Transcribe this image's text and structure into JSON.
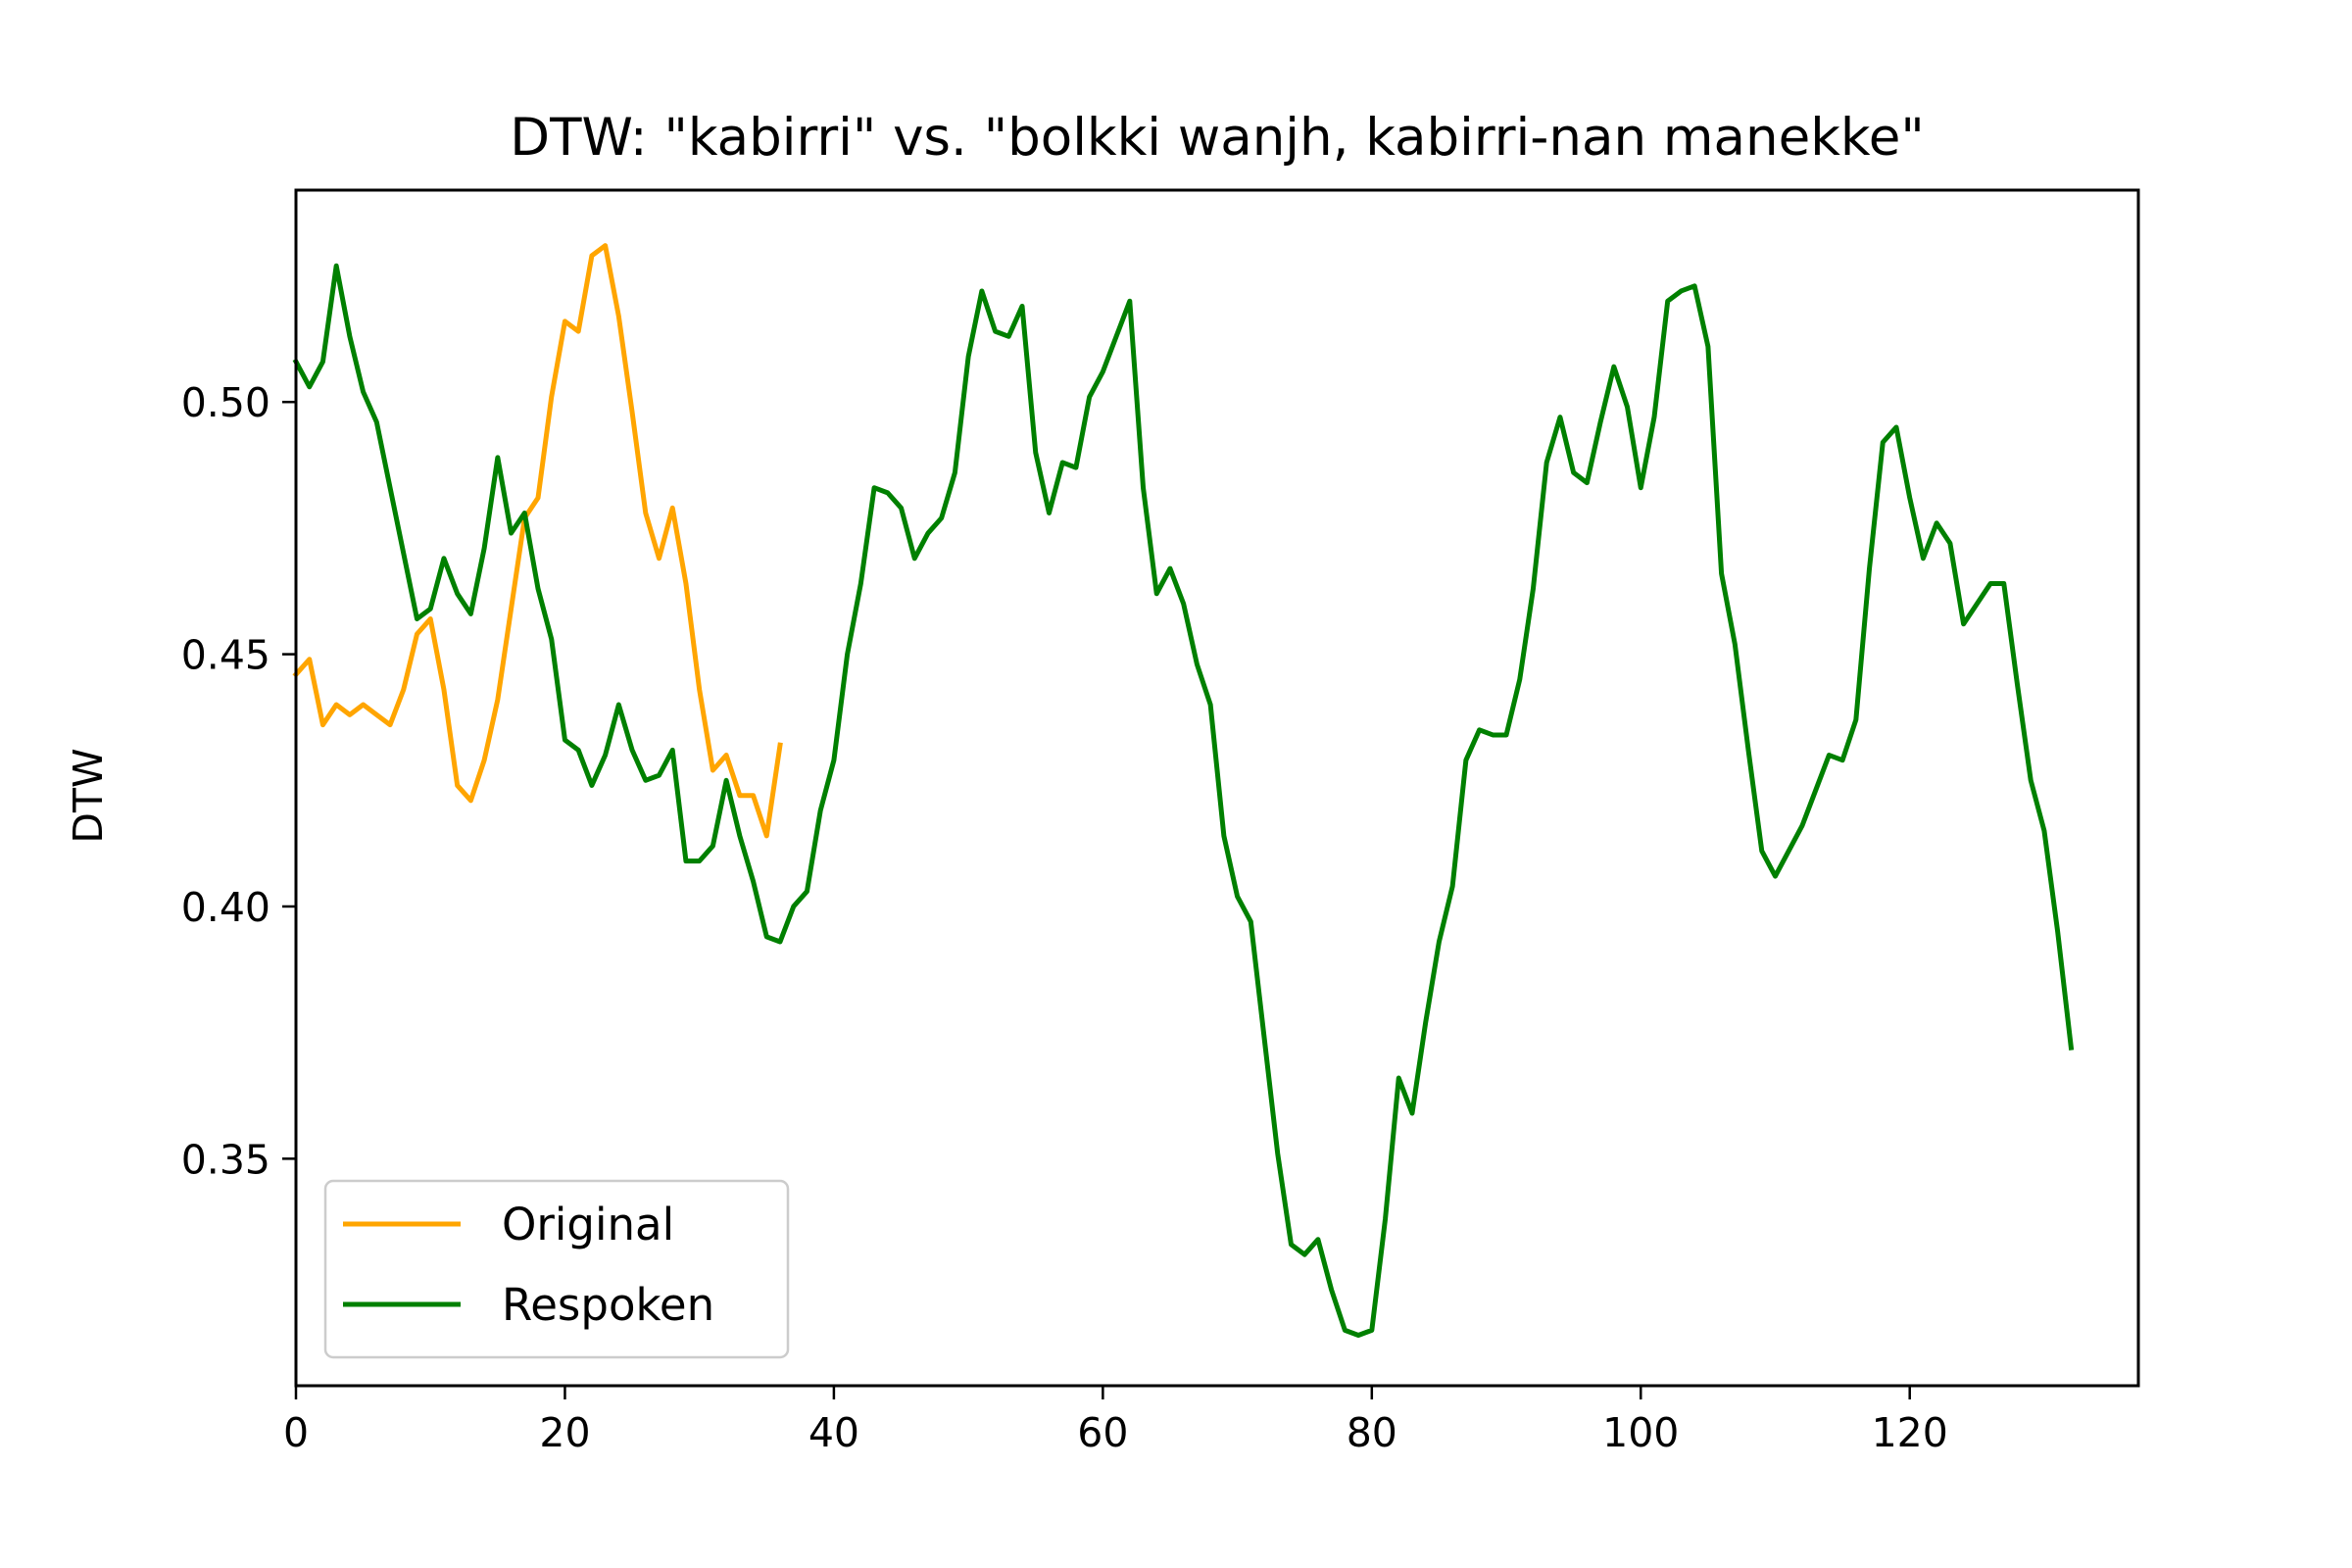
{
  "chart_data": {
    "type": "line",
    "title": "DTW: \"kabirri\" vs. \"bolkki wanjh, kabirri-nan manekke\"",
    "xlabel": "",
    "ylabel": "DTW",
    "xlim": [
      0,
      137
    ],
    "ylim": [
      0.305,
      0.542
    ],
    "xticks": [
      0,
      20,
      40,
      60,
      80,
      100,
      120
    ],
    "xtick_labels": [
      "0",
      "20",
      "40",
      "60",
      "80",
      "100",
      "120"
    ],
    "yticks": [
      0.35,
      0.4,
      0.45,
      0.5
    ],
    "ytick_labels": [
      "0.35",
      "0.40",
      "0.45",
      "0.50"
    ],
    "grid": false,
    "legend_position": "lower-left",
    "series": [
      {
        "name": "Original",
        "color": "#ffa500",
        "values": [
          0.446,
          0.449,
          0.436,
          0.44,
          0.438,
          0.44,
          0.438,
          0.436,
          0.443,
          0.454,
          0.457,
          0.443,
          0.424,
          0.421,
          0.429,
          0.441,
          0.459,
          0.477,
          0.481,
          0.501,
          0.516,
          0.514,
          0.529,
          0.531,
          0.517,
          0.498,
          0.478,
          0.469,
          0.479,
          0.464,
          0.443,
          0.427,
          0.43,
          0.422,
          0.422,
          0.414,
          0.432
        ]
      },
      {
        "name": "Respoken",
        "color": "#008000",
        "values": [
          0.508,
          0.503,
          0.508,
          0.527,
          0.513,
          0.502,
          0.496,
          0.483,
          0.47,
          0.457,
          0.459,
          0.469,
          0.462,
          0.458,
          0.471,
          0.489,
          0.474,
          0.478,
          0.463,
          0.453,
          0.433,
          0.431,
          0.424,
          0.43,
          0.44,
          0.431,
          0.425,
          0.426,
          0.431,
          0.409,
          0.409,
          0.412,
          0.425,
          0.414,
          0.405,
          0.394,
          0.393,
          0.4,
          0.403,
          0.419,
          0.429,
          0.45,
          0.464,
          0.483,
          0.482,
          0.479,
          0.469,
          0.474,
          0.477,
          0.486,
          0.509,
          0.522,
          0.514,
          0.513,
          0.519,
          0.49,
          0.478,
          0.488,
          0.487,
          0.501,
          0.506,
          0.513,
          0.52,
          0.483,
          0.462,
          0.467,
          0.46,
          0.448,
          0.44,
          0.414,
          0.402,
          0.397,
          0.374,
          0.351,
          0.333,
          0.331,
          0.334,
          0.324,
          0.316,
          0.315,
          0.316,
          0.338,
          0.366,
          0.359,
          0.377,
          0.393,
          0.404,
          0.429,
          0.435,
          0.434,
          0.434,
          0.445,
          0.463,
          0.488,
          0.497,
          0.486,
          0.484,
          0.496,
          0.507,
          0.499,
          0.483,
          0.497,
          0.52,
          0.522,
          0.523,
          0.511,
          0.466,
          0.452,
          0.431,
          0.411,
          0.406,
          0.411,
          0.416,
          0.423,
          0.43,
          0.429,
          0.437,
          0.467,
          0.492,
          0.495,
          0.481,
          0.469,
          0.476,
          0.472,
          0.456,
          0.46,
          0.464,
          0.464,
          0.444,
          0.425,
          0.415,
          0.395,
          0.372
        ]
      }
    ]
  }
}
